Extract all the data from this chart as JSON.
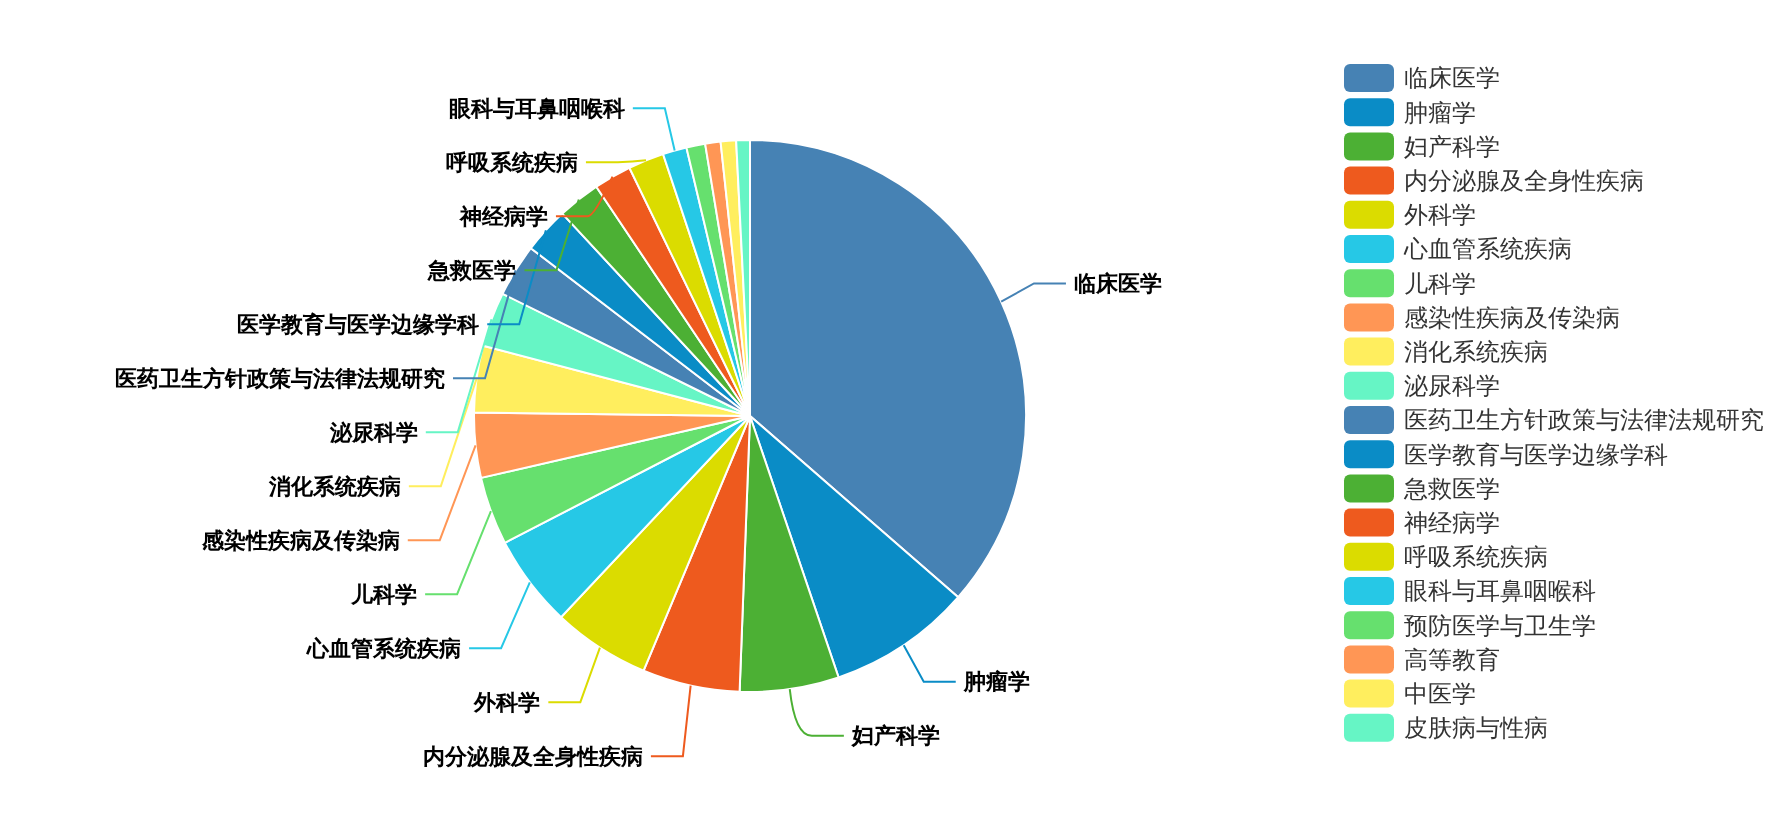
{
  "chart_data": {
    "type": "pie",
    "legend": "right",
    "categories": [
      "临床医学",
      "肿瘤学",
      "妇产科学",
      "内分泌腺及全身性疾病",
      "外科学",
      "心血管系统疾病",
      "儿科学",
      "感染性疾病及传染病",
      "消化系统疾病",
      "泌尿科学",
      "医药卫生方针政策与法律法规研究",
      "医学教育与医学边缘学科",
      "急救医学",
      "神经病学",
      "呼吸系统疾病",
      "眼科与耳鼻咽喉科",
      "预防医学与卫生学",
      "高等教育",
      "中医学",
      "皮肤病与性病"
    ],
    "values": [
      36.4,
      8.4,
      5.8,
      5.7,
      5.7,
      5.4,
      4.0,
      3.8,
      3.9,
      3.2,
      3.1,
      2.7,
      2.5,
      2.2,
      2.1,
      1.4,
      1.1,
      0.9,
      0.9,
      0.8
    ],
    "colors": [
      "#4682b4",
      "#0a8cc6",
      "#4cb034",
      "#ee5a1e",
      "#dbdc00",
      "#26c8e6",
      "#66e06e",
      "#ff9655",
      "#ffee5e",
      "#66f5c5",
      "#4682b4",
      "#0a8cc6",
      "#4cb034",
      "#ee5a1e",
      "#dbdc00",
      "#26c8e6",
      "#66e06e",
      "#ff9655",
      "#ffee5e",
      "#66f5c5"
    ]
  }
}
